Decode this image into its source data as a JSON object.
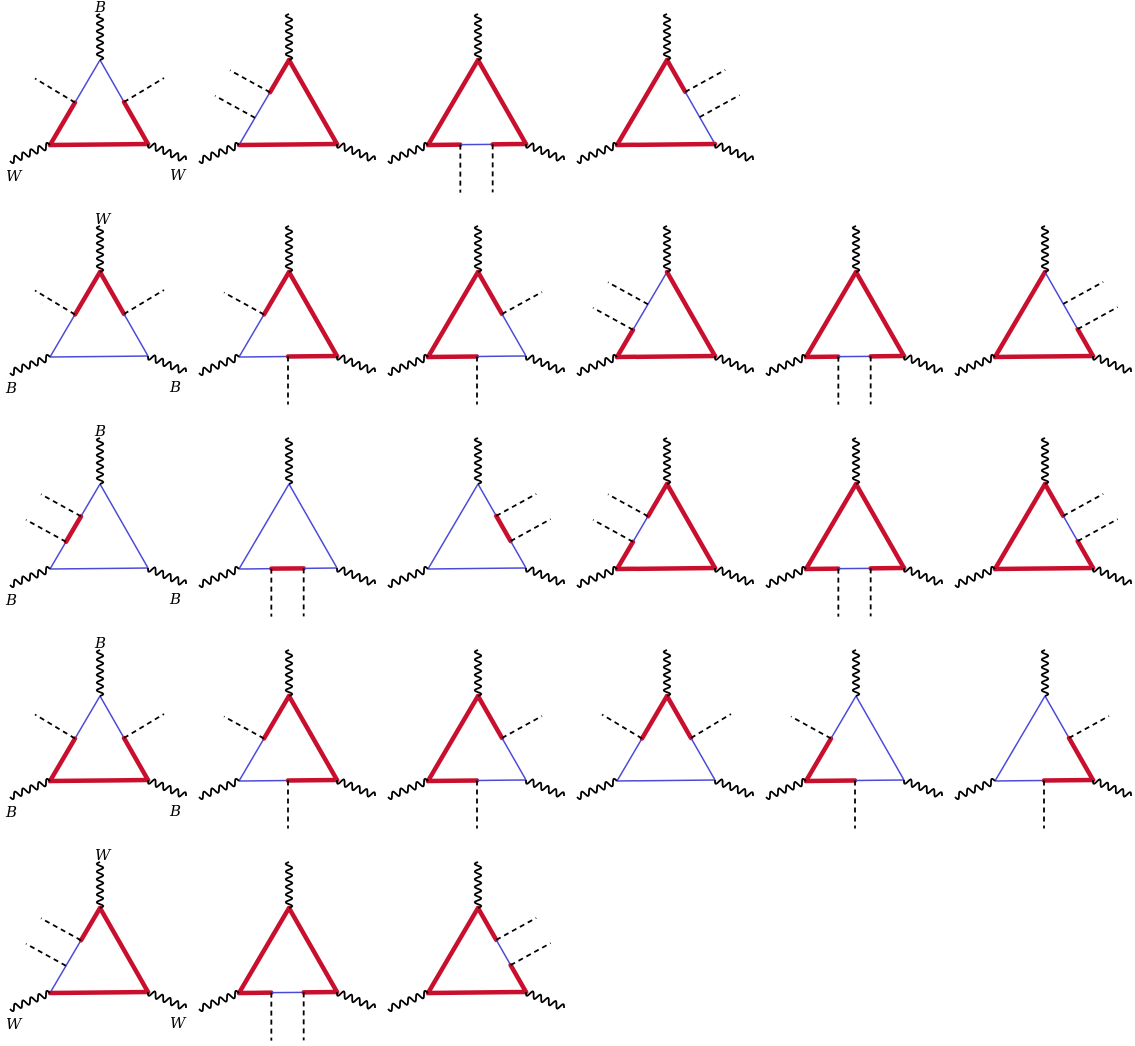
{
  "colors": {
    "heavy": "#c8102e",
    "light": "#4a4ad8",
    "boson": "#000000",
    "scalar": "#000000",
    "background": "#ffffff"
  },
  "rows": [
    {
      "boson_labels": {
        "top": "B",
        "left": "W",
        "right": "W"
      },
      "diagrams": [
        {
          "scalars": "two-left",
          "heavy_segments": [
            "left-lower",
            "base"
          ],
          "light_segments": [
            "left-upper",
            "right-upper"
          ],
          "heavy_right_lower": true
        },
        {
          "scalars": "two-left-side",
          "heavy_segments": [
            "right",
            "base",
            "left-upper"
          ],
          "light_segments": [
            "left-mid"
          ]
        },
        {
          "scalars": "two-bottom",
          "heavy_segments": [
            "left",
            "right",
            "base-left",
            "base-right"
          ],
          "light_segments": [
            "base-mid"
          ]
        },
        {
          "scalars": "two-right-side",
          "heavy_segments": [
            "left",
            "base",
            "right-upper"
          ],
          "light_segments": [
            "right-mid"
          ]
        }
      ]
    },
    {
      "boson_labels": {
        "top": "W",
        "left": "B",
        "right": "B"
      },
      "diagrams": [
        {
          "scalars": "two-left",
          "heavy_segments": [
            "left-upper",
            "right-upper"
          ],
          "light_segments": [
            "left-lower",
            "base",
            "right-lower"
          ]
        },
        {
          "scalars": "left-bottom",
          "heavy_segments": [
            "right",
            "left-upper",
            "base-right"
          ],
          "light_segments": [
            "left-lower",
            "base-left"
          ]
        },
        {
          "scalars": "right-bottom",
          "heavy_segments": [
            "left",
            "right-upper",
            "base-left"
          ],
          "light_segments": [
            "right-lower",
            "base-right"
          ]
        },
        {
          "scalars": "two-left-side",
          "heavy_segments": [
            "right",
            "base",
            "left-lower"
          ],
          "light_segments": [
            "left-mid"
          ]
        },
        {
          "scalars": "two-bottom",
          "heavy_segments": [
            "left",
            "right",
            "base-left",
            "base-right"
          ],
          "light_segments": [
            "base-mid"
          ]
        },
        {
          "scalars": "two-right-side",
          "heavy_segments": [
            "left",
            "base",
            "right-lower"
          ],
          "light_segments": [
            "right-mid"
          ]
        }
      ]
    },
    {
      "boson_labels": {
        "top": "B",
        "left": "B",
        "right": "B"
      },
      "diagrams": [
        {
          "scalars": "two-left-side",
          "heavy_segments": [
            "left-mid"
          ],
          "light_segments": [
            "left-upper",
            "left-lower",
            "right",
            "base"
          ]
        },
        {
          "scalars": "two-bottom",
          "heavy_segments": [
            "base-mid"
          ],
          "light_segments": [
            "left",
            "right",
            "base-left",
            "base-right"
          ]
        },
        {
          "scalars": "two-right-side",
          "heavy_segments": [
            "right-mid"
          ],
          "light_segments": [
            "left",
            "base",
            "right-upper",
            "right-lower"
          ]
        },
        {
          "scalars": "two-left-side",
          "heavy_segments": [
            "right",
            "base",
            "left-upper",
            "left-lower"
          ],
          "light_segments": [
            "left-mid"
          ]
        },
        {
          "scalars": "two-bottom",
          "heavy_segments": [
            "left",
            "right",
            "base-left",
            "base-right"
          ],
          "light_segments": [
            "base-mid"
          ]
        },
        {
          "scalars": "two-right-side",
          "heavy_segments": [
            "left",
            "base",
            "right-upper",
            "right-lower"
          ],
          "light_segments": [
            "right-mid"
          ]
        }
      ]
    },
    {
      "boson_labels": {
        "top": "B",
        "left": "B",
        "right": "B"
      },
      "diagrams": [
        {
          "scalars": "two-left",
          "heavy_segments": [
            "left-lower",
            "base",
            "right-lower"
          ],
          "light_segments": [
            "left-upper",
            "right-upper"
          ]
        },
        {
          "scalars": "left-bottom",
          "heavy_segments": [
            "right",
            "left-upper",
            "base-right"
          ],
          "light_segments": [
            "left-lower",
            "base-left"
          ]
        },
        {
          "scalars": "right-bottom",
          "heavy_segments": [
            "left",
            "right-upper",
            "base-left"
          ],
          "light_segments": [
            "right-lower",
            "base-right"
          ]
        },
        {
          "scalars": "two-left",
          "heavy_segments": [
            "left-upper",
            "right-upper"
          ],
          "light_segments": [
            "left-lower",
            "base",
            "right-lower"
          ]
        },
        {
          "scalars": "left-bottom",
          "heavy_segments": [
            "left-lower",
            "base-left"
          ],
          "light_segments": [
            "left-upper",
            "right",
            "base-right"
          ]
        },
        {
          "scalars": "right-bottom",
          "heavy_segments": [
            "right-lower",
            "base-right"
          ],
          "light_segments": [
            "left",
            "right-upper",
            "base-left"
          ]
        }
      ]
    },
    {
      "boson_labels": {
        "top": "W",
        "left": "W",
        "right": "W"
      },
      "diagrams": [
        {
          "scalars": "two-left-side",
          "heavy_segments": [
            "right",
            "base",
            "left-upper"
          ],
          "light_segments": [
            "left-mid",
            "left-lower"
          ]
        },
        {
          "scalars": "two-bottom",
          "heavy_segments": [
            "left",
            "right",
            "base-left",
            "base-right"
          ],
          "light_segments": [
            "base-mid"
          ]
        },
        {
          "scalars": "two-right-side",
          "heavy_segments": [
            "left",
            "base",
            "right-upper",
            "right-lower"
          ],
          "light_segments": [
            "right-mid"
          ]
        }
      ]
    }
  ]
}
